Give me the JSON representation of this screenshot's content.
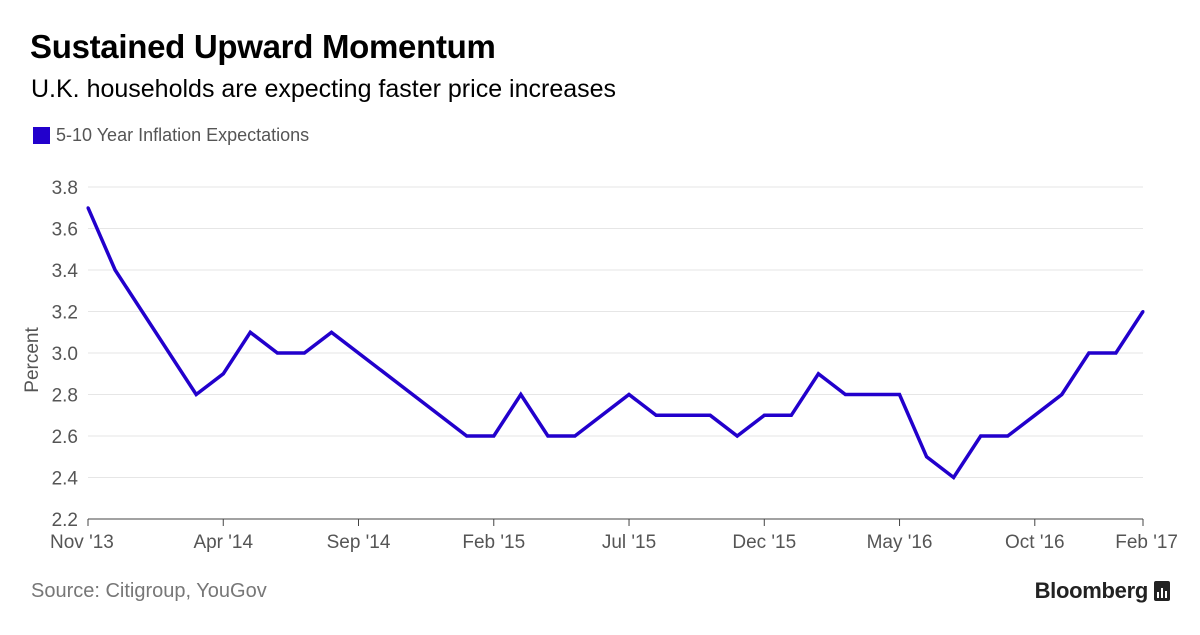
{
  "header": {
    "title": "Sustained Upward Momentum",
    "subtitle": "U.K. households are expecting faster price increases"
  },
  "footer": {
    "source": "Source: Citigroup, YouGov",
    "brand": "Bloomberg"
  },
  "colors": {
    "series": "#2200cc",
    "grid": "#e6e6e6",
    "axis_text": "#555555"
  },
  "chart_data": {
    "type": "line",
    "title": "Sustained Upward Momentum",
    "subtitle": "U.K. households are expecting faster price increases",
    "xlabel": "",
    "ylabel": "Percent",
    "ylim": [
      2.2,
      3.8
    ],
    "yticks": [
      "3.8",
      "3.6",
      "3.4",
      "3.2",
      "3.0",
      "2.8",
      "2.6",
      "2.4",
      "2.2"
    ],
    "ytick_values": [
      3.8,
      3.6,
      3.4,
      3.2,
      3.0,
      2.8,
      2.6,
      2.4,
      2.2
    ],
    "xticks": [
      "Nov '13",
      "Apr '14",
      "Sep '14",
      "Feb '15",
      "Jul '15",
      "Dec '15",
      "May '16",
      "Oct '16",
      "Feb '17"
    ],
    "xtick_month_index": [
      0,
      5,
      10,
      15,
      20,
      25,
      30,
      35,
      39
    ],
    "grid": true,
    "legend_position": "top-left",
    "series": [
      {
        "name": "5-10 Year Inflation Expectations",
        "month_index": [
          0,
          1,
          4,
          5,
          6,
          7,
          8,
          9,
          14,
          15,
          16,
          17,
          18,
          20,
          21,
          22,
          23,
          24,
          25,
          26,
          27,
          28,
          29,
          30,
          31,
          32,
          33,
          34,
          35,
          36,
          37,
          38,
          39
        ],
        "values": [
          3.7,
          3.4,
          2.8,
          2.9,
          3.1,
          3.0,
          3.0,
          3.1,
          2.6,
          2.6,
          2.8,
          2.6,
          2.6,
          2.8,
          2.7,
          2.7,
          2.7,
          2.6,
          2.7,
          2.7,
          2.9,
          2.8,
          2.8,
          2.8,
          2.5,
          2.4,
          2.6,
          2.6,
          2.7,
          2.8,
          3.0,
          3.0,
          3.2
        ]
      }
    ]
  }
}
